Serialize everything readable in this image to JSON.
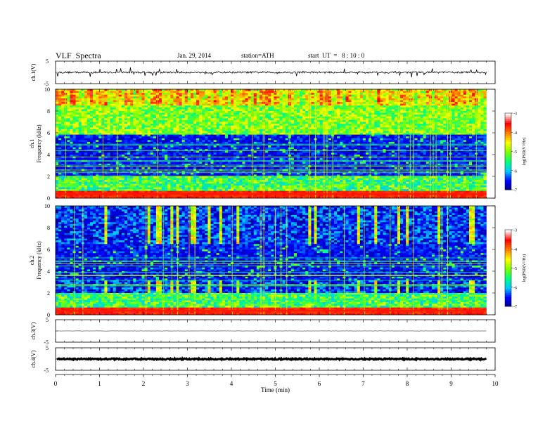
{
  "header": {
    "title": "VLF  Spectra",
    "date": "Jan. 29, 2014",
    "station": "station=ATH",
    "start": "start  UT  =   8 : 10 : 0"
  },
  "chart_data": [
    {
      "type": "line",
      "id": "ch1",
      "ylabel": "ch.1(V)",
      "ylim": [
        -5,
        5
      ],
      "y_ticks": [
        "5",
        "-5"
      ],
      "series": [
        {
          "baseline": 0,
          "noise_amplitude": 0.4,
          "spike_max": 2.2
        }
      ]
    },
    {
      "type": "heatmap",
      "id": "ch1-spectrogram",
      "ylabel": "ch.1\nFrequency  (kHz)",
      "ylim": [
        0,
        10
      ],
      "y_ticks": [
        "0",
        "2",
        "4",
        "6",
        "8",
        "10"
      ],
      "xlim": [
        0,
        10
      ],
      "data_end_min": 9.8,
      "dark_band_khz": [
        1.8,
        5.8
      ],
      "low_band_khz": [
        0,
        1.8
      ],
      "high_band_khz": [
        5.8,
        10
      ],
      "colorbar": {
        "label": "log(PSD(V²/Hz)",
        "ticks": [
          "-3",
          "-4",
          "-5",
          "-6",
          "-7"
        ],
        "range": [
          -7,
          -3
        ]
      }
    },
    {
      "type": "heatmap",
      "id": "ch2-spectrogram",
      "ylabel": "ch.2\nFrequency  (kHz)",
      "ylim": [
        0,
        10
      ],
      "y_ticks": [
        "0",
        "2",
        "4",
        "6",
        "8",
        "10"
      ],
      "xlim": [
        0,
        10
      ],
      "data_end_min": 9.8,
      "dark_band_khz": [
        3.2,
        6.5
      ],
      "colorbar": {
        "label": "log(PSD(V²/Hz)",
        "ticks": [
          "-3",
          "-4",
          "-5",
          "-6",
          "-7"
        ],
        "range": [
          -7,
          -3
        ]
      }
    },
    {
      "type": "line",
      "id": "ch3",
      "ylabel": "ch.3(V)",
      "ylim": [
        -5,
        5
      ],
      "y_ticks": [
        "5",
        "-5"
      ],
      "series": [
        {
          "baseline": 0,
          "noise_amplitude": 0.05
        }
      ]
    },
    {
      "type": "line",
      "id": "ch4",
      "ylabel": "ch.4(V)",
      "ylim": [
        -5,
        5
      ],
      "y_ticks": [
        "5",
        "-5"
      ],
      "series": [
        {
          "baseline": 0,
          "noise_amplitude": 0.3
        }
      ]
    }
  ],
  "x_axis": {
    "label": "Time  (min)",
    "ticks": [
      "0",
      "1",
      "2",
      "3",
      "4",
      "5",
      "6",
      "7",
      "8",
      "9",
      "10"
    ],
    "range": [
      0,
      10
    ]
  },
  "colors": {
    "spectro_scale": [
      "#00007f",
      "#0000ff",
      "#00c8ff",
      "#00ff7f",
      "#7fff00",
      "#ffff00",
      "#ff7f00",
      "#ff0000",
      "#ffffff"
    ]
  }
}
